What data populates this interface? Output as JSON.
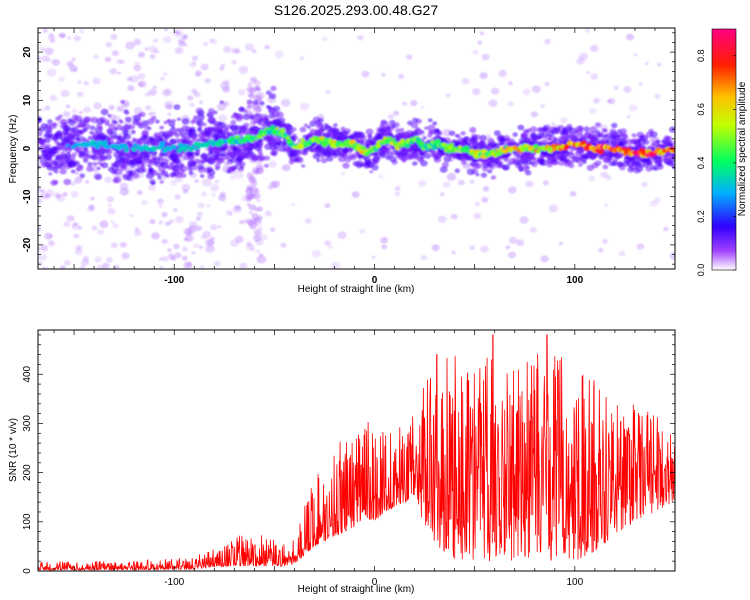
{
  "figure_title": "S126.2025.293.00.48.G27",
  "chart_data": [
    {
      "type": "heatmap",
      "panel": "spectrogram",
      "xlabel": "Height of straight line (km)",
      "ylabel": "Frequency (Hz)",
      "xlim": [
        -168,
        150
      ],
      "ylim": [
        -25,
        25
      ],
      "x_ticks": [
        -100,
        0,
        100
      ],
      "x_tick_labels": [
        "-100",
        "0",
        "100"
      ],
      "y_ticks": [
        20,
        10,
        0,
        -10,
        -20
      ],
      "y_tick_labels": [
        "20",
        "10",
        "0",
        "-10",
        "-20"
      ],
      "dominant_frequency_track": {
        "x": [
          -168,
          -140,
          -120,
          -100,
          -80,
          -60,
          -52,
          -45,
          -40,
          -30,
          -20,
          -10,
          -5,
          0,
          5,
          10,
          15,
          20,
          25,
          30,
          40,
          50,
          60,
          70,
          80,
          90,
          100,
          110,
          120,
          130,
          140,
          150
        ],
        "y": [
          0,
          1,
          0,
          0,
          1,
          2,
          4,
          3,
          0,
          2,
          1,
          1,
          -1,
          0,
          2,
          1,
          1,
          2,
          0,
          1,
          0,
          -1,
          -1,
          0,
          0,
          0,
          1,
          0,
          0,
          -1,
          -1,
          0
        ],
        "amplitude": [
          0.2,
          0.3,
          0.3,
          0.3,
          0.35,
          0.4,
          0.45,
          0.45,
          0.5,
          0.5,
          0.5,
          0.55,
          0.6,
          0.5,
          0.5,
          0.55,
          0.5,
          0.45,
          0.45,
          0.45,
          0.5,
          0.5,
          0.55,
          0.6,
          0.6,
          0.65,
          0.7,
          0.75,
          0.8,
          0.85,
          0.8,
          0.7
        ]
      },
      "colorbar": {
        "label": "Normalized spectral amplitude",
        "range": [
          0.0,
          0.9
        ],
        "ticks": [
          0.0,
          0.2,
          0.4,
          0.6,
          0.8
        ],
        "tick_labels": [
          "0.0",
          "0.2",
          "0.4",
          "0.6",
          "0.8"
        ],
        "colors": [
          "#ffffff",
          "#8000ff",
          "#0000ff",
          "#00ffff",
          "#00ff00",
          "#ffff00",
          "#ff8000",
          "#ff0000",
          "#ff0080"
        ]
      }
    },
    {
      "type": "line",
      "panel": "snr",
      "xlabel": "Height of straight line (km)",
      "ylabel": "SNR (10 * v/v)",
      "xlim": [
        -168,
        150
      ],
      "ylim": [
        0,
        490
      ],
      "x_ticks": [
        -100,
        0,
        100
      ],
      "x_tick_labels": [
        "-100",
        "0",
        "100"
      ],
      "y_ticks": [
        0,
        100,
        200,
        300,
        400
      ],
      "y_tick_labels": [
        "0",
        "100",
        "200",
        "300",
        "400"
      ],
      "line_color": "#ff0000",
      "envelope": {
        "x": [
          -168,
          -140,
          -100,
          -90,
          -80,
          -70,
          -60,
          -50,
          -45,
          -40,
          -35,
          -30,
          -25,
          -20,
          -15,
          -10,
          -5,
          0,
          5,
          10,
          15,
          20,
          25,
          30,
          35,
          40,
          50,
          60,
          70,
          80,
          90,
          100,
          110,
          120,
          130,
          140,
          150
        ],
        "lower": [
          2,
          2,
          3,
          4,
          8,
          10,
          10,
          10,
          10,
          15,
          30,
          50,
          60,
          70,
          80,
          90,
          110,
          100,
          120,
          130,
          140,
          150,
          90,
          60,
          30,
          20,
          20,
          20,
          20,
          20,
          20,
          20,
          40,
          70,
          100,
          120,
          140
        ],
        "upper": [
          20,
          20,
          25,
          30,
          45,
          70,
          80,
          65,
          55,
          70,
          150,
          200,
          220,
          260,
          280,
          300,
          300,
          310,
          280,
          300,
          300,
          320,
          380,
          420,
          440,
          440,
          440,
          450,
          440,
          440,
          450,
          420,
          400,
          360,
          340,
          320,
          300
        ]
      },
      "peaks": [
        {
          "x": 31,
          "y": 440
        },
        {
          "x": 59,
          "y": 480
        },
        {
          "x": 86,
          "y": 480
        }
      ]
    }
  ]
}
